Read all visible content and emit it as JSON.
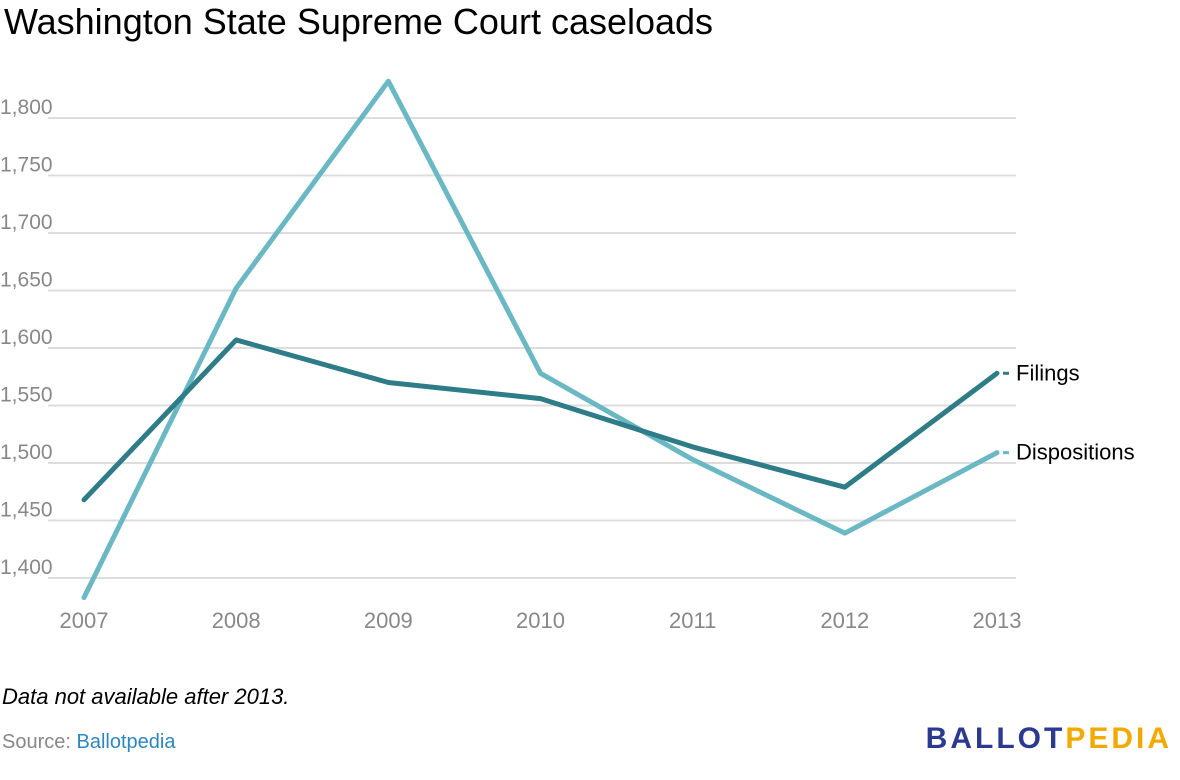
{
  "colors": {
    "filings": "#2E7C87",
    "dispositions": "#6BB8C5",
    "grid": "#DDDDDD",
    "tick": "#888888",
    "link": "#2E86C1",
    "logo_primary": "#2B3990",
    "logo_accent": "#F2A900"
  },
  "chart_data": {
    "type": "line",
    "title": "Washington State Supreme Court caseloads",
    "xlabel": "",
    "ylabel": "",
    "x": [
      "2007",
      "2008",
      "2009",
      "2010",
      "2011",
      "2012",
      "2013"
    ],
    "ylim": [
      1380,
      1830
    ],
    "yticks": [
      1400,
      1450,
      1500,
      1550,
      1600,
      1650,
      1700,
      1750,
      1800
    ],
    "ytick_labels": [
      "1,400",
      "1,450",
      "1,500",
      "1,550",
      "1,600",
      "1,650",
      "1,700",
      "1,750",
      "1,800"
    ],
    "grid": true,
    "legend": "right-end-labels",
    "series": [
      {
        "name": "Filings",
        "values": [
          1468,
          1607,
          1570,
          1556,
          1514,
          1479,
          1578
        ]
      },
      {
        "name": "Dispositions",
        "values": [
          1383,
          1652,
          1832,
          1578,
          1503,
          1439,
          1509
        ]
      }
    ]
  },
  "footer": {
    "note": "Data not available after 2013.",
    "source_prefix": "Source:",
    "source_link": "Ballotpedia",
    "logo_part1": "BALLOT",
    "logo_part2": "PEDIA"
  }
}
